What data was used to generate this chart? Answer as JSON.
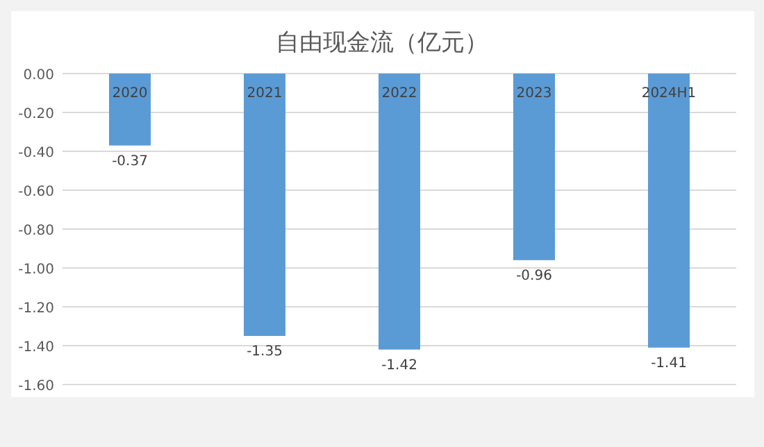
{
  "chart_data": {
    "type": "bar",
    "title": "自由现金流（亿元）",
    "categories": [
      "2020",
      "2021",
      "2022",
      "2023",
      "2024H1"
    ],
    "values": [
      -0.37,
      -1.35,
      -1.42,
      -0.96,
      -1.41
    ],
    "color": "#5b9bd5",
    "ylim": [
      -1.6,
      0
    ],
    "yticks": [
      {
        "value": 0,
        "label": "0.00"
      },
      {
        "value": -0.2,
        "label": "-0.20"
      },
      {
        "value": -0.4,
        "label": "-0.40"
      },
      {
        "value": -0.6,
        "label": "-0.60"
      },
      {
        "value": -0.8,
        "label": "-0.80"
      },
      {
        "value": -1.0,
        "label": "-1.00"
      },
      {
        "value": -1.2,
        "label": "-1.20"
      },
      {
        "value": -1.4,
        "label": "-1.40"
      },
      {
        "value": -1.6,
        "label": "-1.60"
      }
    ],
    "grid": "y",
    "data_labels": true
  }
}
